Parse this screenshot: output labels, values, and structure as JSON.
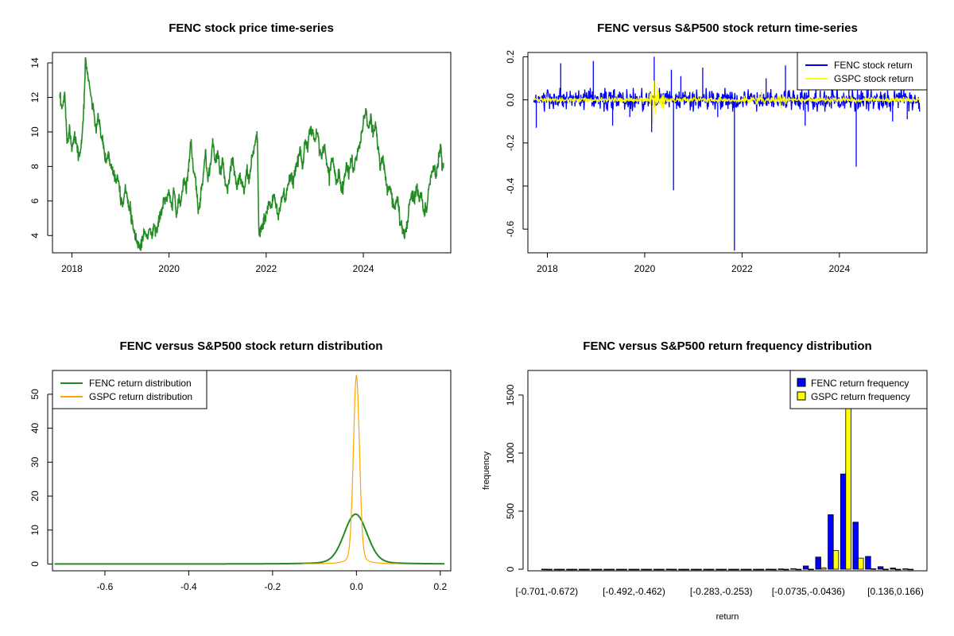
{
  "chart_data": [
    {
      "id": "p1",
      "type": "line",
      "title": "FENC stock price time-series",
      "xlabel": "",
      "ylabel": "",
      "xlim": [
        2017.6,
        2025.8
      ],
      "ylim": [
        3.0,
        14.6
      ],
      "x_ticks": [
        2018,
        2020,
        2022,
        2024
      ],
      "x_tick_labels": [
        "2018",
        "2020",
        "2022",
        "2024"
      ],
      "y_ticks": [
        4,
        6,
        8,
        10,
        12,
        14
      ],
      "y_tick_labels": [
        "4",
        "6",
        "8",
        "10",
        "12",
        "14"
      ],
      "color": "#228B22",
      "series": [
        {
          "name": "FENC price",
          "points": [
            [
              2017.75,
              12.0
            ],
            [
              2017.8,
              11.2
            ],
            [
              2017.85,
              12.3
            ],
            [
              2017.9,
              9.5
            ],
            [
              2017.95,
              10.2
            ],
            [
              2018.0,
              9.0
            ],
            [
              2018.05,
              10.0
            ],
            [
              2018.1,
              9.2
            ],
            [
              2018.15,
              8.5
            ],
            [
              2018.2,
              9.4
            ],
            [
              2018.25,
              11.5
            ],
            [
              2018.28,
              14.3
            ],
            [
              2018.33,
              13.2
            ],
            [
              2018.4,
              12.0
            ],
            [
              2018.45,
              11.0
            ],
            [
              2018.5,
              10.2
            ],
            [
              2018.55,
              10.8
            ],
            [
              2018.6,
              9.8
            ],
            [
              2018.65,
              9.2
            ],
            [
              2018.7,
              8.2
            ],
            [
              2018.75,
              8.8
            ],
            [
              2018.8,
              8.0
            ],
            [
              2018.85,
              7.8
            ],
            [
              2018.9,
              7.2
            ],
            [
              2018.95,
              7.5
            ],
            [
              2019.0,
              6.3
            ],
            [
              2019.05,
              5.8
            ],
            [
              2019.1,
              6.8
            ],
            [
              2019.15,
              6.2
            ],
            [
              2019.2,
              5.5
            ],
            [
              2019.25,
              4.5
            ],
            [
              2019.3,
              4.0
            ],
            [
              2019.35,
              3.6
            ],
            [
              2019.4,
              3.3
            ],
            [
              2019.45,
              3.8
            ],
            [
              2019.5,
              4.2
            ],
            [
              2019.55,
              3.9
            ],
            [
              2019.6,
              4.4
            ],
            [
              2019.65,
              4.0
            ],
            [
              2019.7,
              4.6
            ],
            [
              2019.75,
              4.3
            ],
            [
              2019.8,
              5.0
            ],
            [
              2019.85,
              5.4
            ],
            [
              2019.9,
              6.2
            ],
            [
              2019.95,
              6.0
            ],
            [
              2020.0,
              6.5
            ],
            [
              2020.05,
              5.5
            ],
            [
              2020.1,
              6.8
            ],
            [
              2020.15,
              5.0
            ],
            [
              2020.2,
              6.2
            ],
            [
              2020.25,
              6.0
            ],
            [
              2020.3,
              7.2
            ],
            [
              2020.35,
              6.8
            ],
            [
              2020.4,
              8.0
            ],
            [
              2020.45,
              9.5
            ],
            [
              2020.5,
              7.8
            ],
            [
              2020.55,
              7.0
            ],
            [
              2020.6,
              5.5
            ],
            [
              2020.65,
              6.2
            ],
            [
              2020.7,
              7.5
            ],
            [
              2020.75,
              8.8
            ],
            [
              2020.8,
              7.2
            ],
            [
              2020.85,
              8.0
            ],
            [
              2020.9,
              9.5
            ],
            [
              2020.95,
              8.2
            ],
            [
              2021.0,
              8.8
            ],
            [
              2021.05,
              7.5
            ],
            [
              2021.1,
              8.5
            ],
            [
              2021.15,
              7.0
            ],
            [
              2021.2,
              6.5
            ],
            [
              2021.25,
              7.5
            ],
            [
              2021.3,
              8.5
            ],
            [
              2021.35,
              7.5
            ],
            [
              2021.4,
              6.8
            ],
            [
              2021.45,
              7.5
            ],
            [
              2021.5,
              7.0
            ],
            [
              2021.55,
              6.5
            ],
            [
              2021.6,
              7.8
            ],
            [
              2021.65,
              7.0
            ],
            [
              2021.7,
              8.5
            ],
            [
              2021.75,
              9.0
            ],
            [
              2021.8,
              10.0
            ],
            [
              2021.82,
              9.5
            ],
            [
              2021.85,
              4.0
            ],
            [
              2021.9,
              4.3
            ],
            [
              2021.95,
              4.8
            ],
            [
              2022.0,
              5.2
            ],
            [
              2022.05,
              6.0
            ],
            [
              2022.1,
              5.5
            ],
            [
              2022.15,
              6.3
            ],
            [
              2022.2,
              5.8
            ],
            [
              2022.25,
              5.2
            ],
            [
              2022.3,
              5.8
            ],
            [
              2022.35,
              6.5
            ],
            [
              2022.4,
              6.0
            ],
            [
              2022.45,
              6.8
            ],
            [
              2022.5,
              7.5
            ],
            [
              2022.55,
              7.0
            ],
            [
              2022.6,
              7.8
            ],
            [
              2022.65,
              8.5
            ],
            [
              2022.7,
              9.0
            ],
            [
              2022.75,
              8.0
            ],
            [
              2022.8,
              9.5
            ],
            [
              2022.85,
              9.0
            ],
            [
              2022.9,
              10.0
            ],
            [
              2022.95,
              10.2
            ],
            [
              2023.0,
              9.5
            ],
            [
              2023.05,
              10.2
            ],
            [
              2023.1,
              9.0
            ],
            [
              2023.15,
              8.5
            ],
            [
              2023.2,
              9.2
            ],
            [
              2023.25,
              8.2
            ],
            [
              2023.3,
              7.5
            ],
            [
              2023.35,
              8.5
            ],
            [
              2023.4,
              8.0
            ],
            [
              2023.45,
              7.0
            ],
            [
              2023.5,
              7.8
            ],
            [
              2023.55,
              6.5
            ],
            [
              2023.6,
              7.2
            ],
            [
              2023.65,
              8.0
            ],
            [
              2023.7,
              7.5
            ],
            [
              2023.75,
              8.5
            ],
            [
              2023.8,
              7.8
            ],
            [
              2023.85,
              8.5
            ],
            [
              2023.9,
              9.0
            ],
            [
              2023.95,
              9.5
            ],
            [
              2024.0,
              10.5
            ],
            [
              2024.05,
              11.5
            ],
            [
              2024.1,
              10.0
            ],
            [
              2024.15,
              10.8
            ],
            [
              2024.2,
              9.8
            ],
            [
              2024.25,
              10.5
            ],
            [
              2024.3,
              9.2
            ],
            [
              2024.35,
              8.0
            ],
            [
              2024.4,
              8.5
            ],
            [
              2024.45,
              7.5
            ],
            [
              2024.5,
              6.5
            ],
            [
              2024.55,
              7.0
            ],
            [
              2024.6,
              6.0
            ],
            [
              2024.65,
              5.5
            ],
            [
              2024.7,
              6.2
            ],
            [
              2024.75,
              5.0
            ],
            [
              2024.8,
              4.5
            ],
            [
              2024.85,
              4.1
            ],
            [
              2024.9,
              4.5
            ],
            [
              2024.95,
              5.8
            ],
            [
              2025.0,
              6.5
            ],
            [
              2025.05,
              6.0
            ],
            [
              2025.1,
              6.8
            ],
            [
              2025.15,
              6.2
            ],
            [
              2025.2,
              6.5
            ],
            [
              2025.25,
              5.2
            ],
            [
              2025.3,
              5.5
            ],
            [
              2025.35,
              6.8
            ],
            [
              2025.4,
              7.5
            ],
            [
              2025.45,
              8.0
            ],
            [
              2025.5,
              7.5
            ],
            [
              2025.55,
              8.5
            ],
            [
              2025.6,
              9.2
            ],
            [
              2025.62,
              8.0
            ],
            [
              2025.65,
              8.2
            ]
          ]
        }
      ]
    },
    {
      "id": "p2",
      "type": "line",
      "title": "FENC versus S&P500 stock return time-series",
      "xlabel": "",
      "ylabel": "",
      "xlim": [
        2017.6,
        2025.8
      ],
      "ylim": [
        -0.71,
        0.22
      ],
      "x_ticks": [
        2018,
        2020,
        2022,
        2024
      ],
      "x_tick_labels": [
        "2018",
        "2020",
        "2022",
        "2024"
      ],
      "y_ticks": [
        -0.6,
        -0.4,
        -0.2,
        0.0,
        0.2
      ],
      "y_tick_labels": [
        "-0.6",
        "-0.4",
        "-0.2",
        "0.0",
        "0.2"
      ],
      "legend": {
        "position": "top-right",
        "entries": [
          {
            "label": "FENC stock return",
            "color": "#0000FF"
          },
          {
            "label": "GSPC stock return",
            "color": "#FFFF00"
          }
        ]
      },
      "series": [
        {
          "name": "FENC stock return",
          "color": "#0000FF",
          "band": 0.055,
          "spikes": [
            [
              2017.78,
              -0.13
            ],
            [
              2018.28,
              0.17
            ],
            [
              2018.95,
              0.18
            ],
            [
              2019.35,
              -0.12
            ],
            [
              2019.7,
              -0.08
            ],
            [
              2020.15,
              -0.15
            ],
            [
              2020.2,
              0.2
            ],
            [
              2020.55,
              0.14
            ],
            [
              2020.6,
              -0.42
            ],
            [
              2020.75,
              0.11
            ],
            [
              2021.2,
              0.15
            ],
            [
              2021.5,
              -0.08
            ],
            [
              2021.85,
              -0.7
            ],
            [
              2022.5,
              0.1
            ],
            [
              2022.9,
              0.16
            ],
            [
              2023.3,
              -0.12
            ],
            [
              2023.85,
              0.13
            ],
            [
              2024.2,
              0.15
            ],
            [
              2024.35,
              -0.31
            ],
            [
              2024.6,
              0.09
            ],
            [
              2025.1,
              -0.1
            ],
            [
              2025.4,
              -0.09
            ]
          ]
        },
        {
          "name": "GSPC stock return",
          "color": "#FFFF00",
          "band": 0.012,
          "spikes": [
            [
              2020.17,
              -0.11
            ],
            [
              2020.19,
              0.09
            ],
            [
              2020.22,
              -0.07
            ],
            [
              2020.25,
              0.06
            ],
            [
              2022.4,
              0.035
            ],
            [
              2022.8,
              -0.04
            ]
          ]
        }
      ]
    },
    {
      "id": "p3",
      "type": "line",
      "title": "FENC versus S&P500 stock return distribution",
      "xlabel": "",
      "ylabel": "",
      "xlim": [
        -0.725,
        0.225
      ],
      "ylim": [
        -2,
        57
      ],
      "x_ticks": [
        -0.6,
        -0.4,
        -0.2,
        0.0,
        0.2
      ],
      "x_tick_labels": [
        "-0.6",
        "-0.4",
        "-0.2",
        "0.0",
        "0.2"
      ],
      "y_ticks": [
        0,
        10,
        20,
        30,
        40,
        50
      ],
      "y_tick_labels": [
        "0",
        "10",
        "20",
        "30",
        "40",
        "50"
      ],
      "legend": {
        "position": "top-left",
        "entries": [
          {
            "label": "FENC return distribution",
            "color": "#228B22"
          },
          {
            "label": "GSPC return distribution",
            "color": "#FFA500"
          }
        ]
      },
      "series": [
        {
          "name": "FENC return distribution",
          "color": "#228B22",
          "peak": 14.7,
          "mean": -0.002,
          "sd": 0.027,
          "xmin": -0.72,
          "xmax": 0.21
        },
        {
          "name": "GSPC return distribution",
          "color": "#FFA500",
          "peak": 55.5,
          "mean": 0.0,
          "sd": 0.0072,
          "xmin": -0.13,
          "xmax": 0.1
        }
      ]
    },
    {
      "id": "p4",
      "type": "bar",
      "title": "FENC versus S&P500 return frequency distribution",
      "xlabel": "return",
      "ylabel": "frequency",
      "ylim": [
        0,
        1650
      ],
      "y_ticks": [
        0,
        500,
        1000,
        1500
      ],
      "y_tick_labels": [
        "0",
        "500",
        "1000",
        "1500"
      ],
      "categories": [
        "[-0.701,-0.672)",
        "[-0.672,-0.642)",
        "[-0.642,-0.612)",
        "[-0.612,-0.582)",
        "[-0.582,-0.552)",
        "[-0.552,-0.522)",
        "[-0.522,-0.492)",
        "[-0.492,-0.462)",
        "[-0.462,-0.432)",
        "[-0.432,-0.402)",
        "[-0.402,-0.373)",
        "[-0.373,-0.343)",
        "[-0.343,-0.313)",
        "[-0.313,-0.283)",
        "[-0.283,-0.253)",
        "[-0.253,-0.223)",
        "[-0.223,-0.193)",
        "[-0.193,-0.163)",
        "[-0.163,-0.133)",
        "[-0.133,-0.103)",
        "[-0.103,-0.0735)",
        "[-0.0735,-0.0436)",
        "[-0.0436,-0.0137)",
        "[-0.0137,0.0162)",
        "[0.0162,0.0461)",
        "[0.0461,0.076)",
        "[0.076,0.106)",
        "[0.106,0.136)",
        "[0.136,0.166)",
        "[0.166,0.196)"
      ],
      "x_tick_labels": [
        "[-0.701,-0.672)",
        "[-0.492,-0.462)",
        "[-0.283,-0.253)",
        "[-0.0735,-0.0436)",
        "[0.136,0.166)"
      ],
      "x_tick_indices": [
        0,
        7,
        14,
        21,
        28
      ],
      "legend": {
        "position": "top-right",
        "entries": [
          {
            "label": "FENC return frequency",
            "color": "#0000FF"
          },
          {
            "label": "GSPC return frequency",
            "color": "#FFFF00"
          }
        ]
      },
      "series": [
        {
          "name": "FENC return frequency",
          "color": "#0000FF",
          "values": [
            1,
            0,
            0,
            0,
            0,
            0,
            0,
            0,
            0,
            0,
            1,
            0,
            0,
            0,
            0,
            0,
            0,
            0,
            1,
            3,
            5,
            28,
            105,
            470,
            820,
            405,
            110,
            22,
            10,
            4
          ]
        },
        {
          "name": "GSPC return frequency",
          "color": "#FFFF00",
          "values": [
            0,
            0,
            0,
            0,
            0,
            0,
            0,
            0,
            0,
            0,
            0,
            0,
            0,
            0,
            0,
            0,
            0,
            0,
            0,
            0,
            0,
            1,
            12,
            160,
            1640,
            95,
            4,
            1,
            0,
            0
          ]
        }
      ]
    }
  ]
}
